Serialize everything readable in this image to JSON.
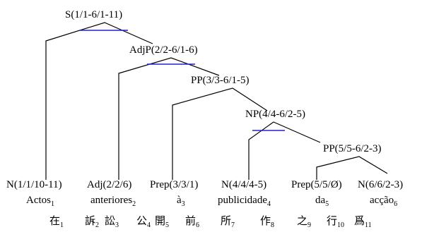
{
  "tree": {
    "nodes": [
      {
        "id": "S",
        "label": "S(1/1-6/1-11)"
      },
      {
        "id": "AdjP",
        "label": "AdjP(2/2-6/1-6)"
      },
      {
        "id": "PP1",
        "label": "PP(3/3-6/1-5)"
      },
      {
        "id": "NP",
        "label": "NP(4/4-6/2-5)"
      },
      {
        "id": "PP2",
        "label": "PP(5/5-6/2-3)"
      }
    ],
    "leaves": [
      {
        "id": "N1",
        "label": "N(1/1/10-11)",
        "word": "Actos",
        "index": "1"
      },
      {
        "id": "Adj2",
        "label": "Adj(2/2/6)",
        "word": "anteriores",
        "index": "2"
      },
      {
        "id": "Prep3",
        "label": "Prep(3/3/1)",
        "word": "à",
        "index": "3"
      },
      {
        "id": "N4",
        "label": "N(4/4/4-5)",
        "word": "publicidade",
        "index": "4"
      },
      {
        "id": "Prep5",
        "label": "Prep(5/5/Ø)",
        "word": "da",
        "index": "5"
      },
      {
        "id": "N6",
        "label": "N(6/6/2-3)",
        "word": "acção",
        "index": "6"
      }
    ]
  },
  "chinese": [
    {
      "char": "在",
      "index": "1"
    },
    {
      "char": "訴",
      "index": "2"
    },
    {
      "char": "訟",
      "index": "3"
    },
    {
      "char": "公",
      "index": "4"
    },
    {
      "char": "開",
      "index": "5"
    },
    {
      "char": "前",
      "index": "6"
    },
    {
      "char": "所",
      "index": "7"
    },
    {
      "char": "作",
      "index": "8"
    },
    {
      "char": "之",
      "index": "9"
    },
    {
      "char": "行",
      "index": "10"
    },
    {
      "char": "爲",
      "index": "11"
    }
  ],
  "colors": {
    "edge": "#000000",
    "arc": "#2222cc"
  }
}
